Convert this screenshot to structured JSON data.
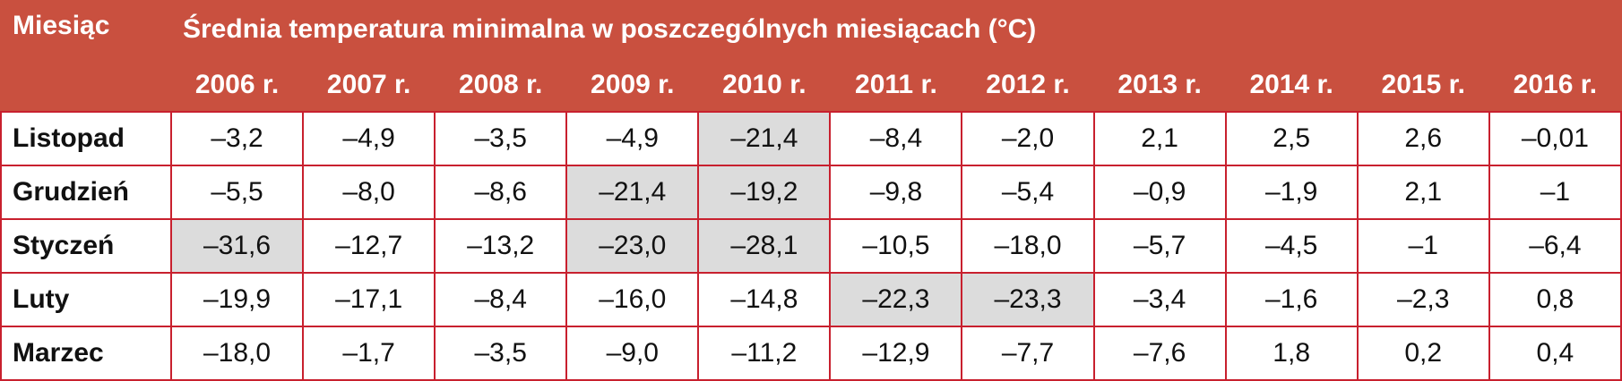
{
  "header": {
    "title": "Miesiąc",
    "subtitle": "Średnia temperatura minimalna w poszczególnych miesiącach (°C)",
    "years": [
      "2006 r.",
      "2007 r.",
      "2008 r.",
      "2009 r.",
      "2010 r.",
      "2011 r.",
      "2012 r.",
      "2013 r.",
      "2014 r.",
      "2015 r.",
      "2016 r."
    ]
  },
  "table": {
    "rows": [
      {
        "label": "Listopad",
        "values": [
          "–3,2",
          "–4,9",
          "–3,5",
          "–4,9",
          "–21,4",
          "–8,4",
          "–2,0",
          "2,1",
          "2,5",
          "2,6",
          "–0,01"
        ],
        "shaded": [
          false,
          false,
          false,
          false,
          true,
          false,
          false,
          false,
          false,
          false,
          false
        ]
      },
      {
        "label": "Grudzień",
        "values": [
          "–5,5",
          "–8,0",
          "–8,6",
          "–21,4",
          "–19,2",
          "–9,8",
          "–5,4",
          "–0,9",
          "–1,9",
          "2,1",
          "–1"
        ],
        "shaded": [
          false,
          false,
          false,
          true,
          true,
          false,
          false,
          false,
          false,
          false,
          false
        ]
      },
      {
        "label": "Styczeń",
        "values": [
          "–31,6",
          "–12,7",
          "–13,2",
          "–23,0",
          "–28,1",
          "–10,5",
          "–18,0",
          "–5,7",
          "–4,5",
          "–1",
          "–6,4"
        ],
        "shaded": [
          true,
          false,
          false,
          true,
          true,
          false,
          false,
          false,
          false,
          false,
          false
        ]
      },
      {
        "label": "Luty",
        "values": [
          "–19,9",
          "–17,1",
          "–8,4",
          "–16,0",
          "–14,8",
          "–22,3",
          "–23,3",
          "–3,4",
          "–1,6",
          "–2,3",
          "0,8"
        ],
        "shaded": [
          false,
          false,
          false,
          false,
          false,
          true,
          true,
          false,
          false,
          false,
          false
        ]
      },
      {
        "label": "Marzec",
        "values": [
          "–18,0",
          "–1,7",
          "–3,5",
          "–9,0",
          "–11,2",
          "–12,9",
          "–7,7",
          "–7,6",
          "1,8",
          "0,2",
          "0,4"
        ],
        "shaded": [
          false,
          false,
          false,
          false,
          false,
          false,
          false,
          false,
          false,
          false,
          false
        ]
      }
    ]
  }
}
